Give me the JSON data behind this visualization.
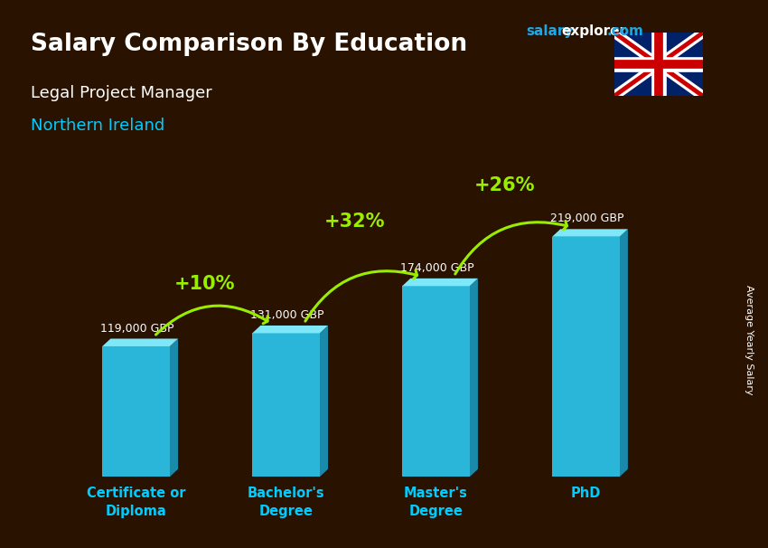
{
  "title": "Salary Comparison By Education",
  "subtitle_job": "Legal Project Manager",
  "subtitle_location": "Northern Ireland",
  "ylabel": "Average Yearly Salary",
  "categories": [
    "Certificate or\nDiploma",
    "Bachelor's\nDegree",
    "Master's\nDegree",
    "PhD"
  ],
  "values": [
    119000,
    131000,
    174000,
    219000
  ],
  "value_labels": [
    "119,000 GBP",
    "131,000 GBP",
    "174,000 GBP",
    "219,000 GBP"
  ],
  "pct_labels": [
    "+10%",
    "+32%",
    "+26%"
  ],
  "bar_color_front": "#29b6d8",
  "bar_color_top": "#7ee8f8",
  "bar_color_side": "#1a8aaa",
  "background_color": "#2a1200",
  "title_color": "#ffffff",
  "subtitle_job_color": "#ffffff",
  "subtitle_location_color": "#00ccff",
  "value_label_color": "#ffffff",
  "pct_label_color": "#99ee00",
  "arrow_color": "#99ee00",
  "xlabel_color": "#00ccff",
  "ylabel_color": "#ffffff",
  "website_salary_color": "#1aa8e8",
  "website_explorer_color": "#ffffff"
}
